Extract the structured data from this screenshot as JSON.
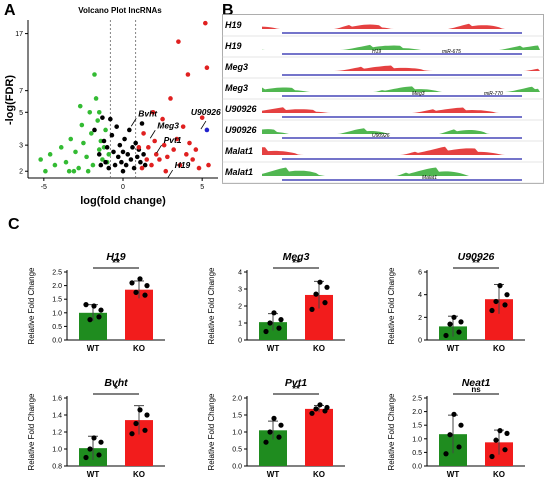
{
  "panels": {
    "a_letter": "A",
    "b_letter": "B",
    "c_letter": "C"
  },
  "chart_data": [
    {
      "type": "scatter",
      "title": "Volcano Plot lncRNAs",
      "xlabel": "log(fold change)",
      "ylabel": "-log(FDR)",
      "xlim": [
        -6,
        6
      ],
      "ylim": [
        1.8,
        21
      ],
      "x_ticks": [
        "-5",
        "0",
        "5"
      ],
      "y_ticks": [
        "2",
        "3",
        "5",
        "7",
        "17"
      ],
      "scale_y": "log",
      "threshold_lines_x": [
        -0.8,
        0.8
      ],
      "colors": {
        "down": "#33bb33",
        "ns": "#000000",
        "up": "#e02020",
        "highlight": "#2222cc"
      },
      "series": [
        {
          "name": "",
          "color": "down",
          "points": [
            [
              -5.2,
              2.4
            ],
            [
              -4.6,
              2.6
            ],
            [
              -4.3,
              2.2
            ],
            [
              -3.9,
              2.9
            ],
            [
              -3.6,
              2.3
            ],
            [
              -3.3,
              3.3
            ],
            [
              -3.0,
              2.7
            ],
            [
              -2.8,
              2.1
            ],
            [
              -2.6,
              4.1
            ],
            [
              -2.5,
              3.1
            ],
            [
              -2.3,
              2.5
            ],
            [
              -2.1,
              5.0
            ],
            [
              -2.0,
              3.6
            ],
            [
              -1.9,
              2.2
            ],
            [
              -1.7,
              6.2
            ],
            [
              -1.6,
              4.4
            ],
            [
              -1.5,
              2.8
            ],
            [
              -1.4,
              3.2
            ],
            [
              -1.3,
              2.4
            ],
            [
              -1.2,
              2.9
            ],
            [
              -1.1,
              3.8
            ],
            [
              -1.0,
              2.3
            ],
            [
              -3.4,
              2.0
            ],
            [
              -2.2,
              2.0
            ],
            [
              -4.9,
              2.0
            ],
            [
              -1.8,
              9.0
            ],
            [
              -2.7,
              5.5
            ],
            [
              -1.5,
              5.0
            ],
            [
              -3.1,
              2.0
            ],
            [
              -0.9,
              2.6
            ]
          ]
        },
        {
          "name": "",
          "color": "ns",
          "points": [
            [
              -1.8,
              3.8
            ],
            [
              -1.5,
              2.6
            ],
            [
              -1.3,
              4.6
            ],
            [
              -1.2,
              3.2
            ],
            [
              -1.1,
              2.3
            ],
            [
              -1.0,
              2.9
            ],
            [
              -0.9,
              2.1
            ],
            [
              -0.7,
              3.5
            ],
            [
              -0.6,
              2.7
            ],
            [
              -0.5,
              2.2
            ],
            [
              -0.4,
              4.0
            ],
            [
              -0.3,
              2.5
            ],
            [
              -0.2,
              3.0
            ],
            [
              -0.1,
              2.3
            ],
            [
              0.0,
              2.7
            ],
            [
              0.1,
              3.3
            ],
            [
              0.2,
              2.2
            ],
            [
              0.3,
              2.6
            ],
            [
              0.4,
              3.8
            ],
            [
              0.5,
              2.4
            ],
            [
              0.6,
              2.9
            ],
            [
              0.7,
              2.1
            ],
            [
              0.8,
              3.1
            ],
            [
              0.9,
              2.5
            ],
            [
              1.0,
              2.8
            ],
            [
              1.1,
              2.3
            ],
            [
              1.2,
              4.2
            ],
            [
              1.3,
              2.6
            ],
            [
              -1.4,
              2.2
            ],
            [
              -0.8,
              4.5
            ],
            [
              0.0,
              2.0
            ],
            [
              1.4,
              2.2
            ]
          ]
        },
        {
          "name": "",
          "color": "up",
          "points": [
            [
              1.0,
              2.9
            ],
            [
              1.3,
              3.6
            ],
            [
              1.5,
              2.4
            ],
            [
              1.6,
              2.9
            ],
            [
              1.8,
              2.2
            ],
            [
              2.0,
              3.2
            ],
            [
              2.1,
              2.6
            ],
            [
              2.3,
              2.4
            ],
            [
              2.5,
              4.5
            ],
            [
              2.6,
              3.0
            ],
            [
              2.8,
              2.5
            ],
            [
              3.0,
              6.2
            ],
            [
              3.2,
              2.8
            ],
            [
              3.4,
              3.3
            ],
            [
              3.6,
              2.2
            ],
            [
              3.8,
              4.0
            ],
            [
              4.0,
              2.6
            ],
            [
              4.2,
              3.1
            ],
            [
              4.4,
              2.4
            ],
            [
              4.6,
              2.8
            ],
            [
              4.8,
              2.1
            ],
            [
              5.0,
              4.6
            ],
            [
              5.2,
              20.0
            ],
            [
              5.3,
              10.0
            ],
            [
              4.1,
              9.0
            ],
            [
              3.5,
              15.0
            ],
            [
              1.9,
              5.0
            ],
            [
              2.7,
              2.0
            ],
            [
              1.2,
              2.1
            ],
            [
              5.4,
              2.2
            ]
          ]
        },
        {
          "name": "",
          "color": "highlight",
          "points": [
            [
              5.3,
              3.8
            ]
          ]
        }
      ],
      "annotations": [
        {
          "label": "Bvht",
          "x": 0.9,
          "y": 4.7
        },
        {
          "label": "Meg3",
          "x": 2.1,
          "y": 3.9
        },
        {
          "label": "Pvt1",
          "x": 2.5,
          "y": 3.1
        },
        {
          "label": "H19",
          "x": 3.2,
          "y": 2.1
        },
        {
          "label": "U90926",
          "x": 5.3,
          "y": 4.5
        }
      ]
    },
    {
      "type": "bar",
      "title": "H19",
      "categories": [
        "WT",
        "KO"
      ],
      "values": [
        1.0,
        1.85
      ],
      "errors": [
        0.3,
        0.32
      ],
      "ylabel": "Relative Fold Change",
      "ylim": [
        0,
        2.5
      ],
      "yticks": [
        "0.0",
        "0.5",
        "1.0",
        "1.5",
        "2.0",
        "2.5"
      ],
      "significance": "**",
      "points": [
        [
          1.3,
          0.85,
          0.75,
          1.1,
          1.25
        ],
        [
          2.1,
          1.65,
          1.75,
          2.0,
          2.25
        ]
      ]
    },
    {
      "type": "bar",
      "title": "Meg3",
      "categories": [
        "WT",
        "KO"
      ],
      "values": [
        1.05,
        2.65
      ],
      "errors": [
        0.5,
        0.8
      ],
      "ylabel": "Relative Fold Change",
      "ylim": [
        0,
        4
      ],
      "yticks": [
        "0",
        "1",
        "2",
        "3",
        "4"
      ],
      "significance": "**",
      "points": [
        [
          0.5,
          0.7,
          1.0,
          1.2,
          1.6
        ],
        [
          1.8,
          2.2,
          2.7,
          3.1,
          3.4
        ]
      ]
    },
    {
      "type": "bar",
      "title": "U90926",
      "categories": [
        "WT",
        "KO"
      ],
      "values": [
        1.2,
        3.6
      ],
      "errors": [
        0.9,
        1.3
      ],
      "ylabel": "Relative Fold Change",
      "ylim": [
        0,
        6
      ],
      "yticks": [
        "0",
        "2",
        "4",
        "6"
      ],
      "significance": "**",
      "points": [
        [
          0.4,
          0.7,
          1.4,
          1.6,
          2.0
        ],
        [
          2.6,
          3.1,
          3.4,
          4.0,
          4.8
        ]
      ]
    },
    {
      "type": "bar",
      "title": "Bvht",
      "categories": [
        "WT",
        "KO"
      ],
      "values": [
        1.01,
        1.34
      ],
      "errors": [
        0.14,
        0.17
      ],
      "ylabel": "Relative Fold Change",
      "ylim": [
        0.8,
        1.6
      ],
      "yticks": [
        "0.8",
        "1.0",
        "1.2",
        "1.4",
        "1.6"
      ],
      "significance": "*",
      "points": [
        [
          0.9,
          0.93,
          1.0,
          1.08,
          1.13
        ],
        [
          1.18,
          1.22,
          1.3,
          1.4,
          1.46
        ]
      ]
    },
    {
      "type": "bar",
      "title": "Pvt1",
      "categories": [
        "WT",
        "KO"
      ],
      "values": [
        1.05,
        1.68
      ],
      "errors": [
        0.27,
        0.1
      ],
      "ylabel": "Relative Fold Change",
      "ylim": [
        0,
        2
      ],
      "yticks": [
        "0.0",
        "0.5",
        "1.0",
        "1.5",
        "2.0"
      ],
      "significance": "**",
      "points": [
        [
          0.7,
          0.85,
          1.0,
          1.2,
          1.4
        ],
        [
          1.55,
          1.62,
          1.68,
          1.72,
          1.8
        ]
      ]
    },
    {
      "type": "bar",
      "title": "Neat1",
      "categories": [
        "WT",
        "KO"
      ],
      "values": [
        1.17,
        0.87
      ],
      "errors": [
        0.7,
        0.45
      ],
      "ylabel": "Relative Fold Change",
      "ylim": [
        0,
        2.5
      ],
      "yticks": [
        "0.0",
        "0.5",
        "1.0",
        "1.5",
        "2.0",
        "2.5"
      ],
      "significance": "ns",
      "points": [
        [
          0.45,
          0.7,
          1.15,
          1.5,
          1.9
        ],
        [
          0.35,
          0.6,
          0.95,
          1.2,
          1.3
        ]
      ]
    }
  ],
  "tracks": {
    "labels": [
      "H19",
      "H19",
      "Meg3",
      "Meg3",
      "U90926",
      "U90926",
      "Malat1",
      "Malat1"
    ],
    "gene_annotations": [
      "H19",
      "miR-675",
      "Meg3",
      "miR-770",
      "U90926",
      "Malat1"
    ],
    "colors": {
      "wt": "#e02020",
      "ko": "#33aa33",
      "gene": "#2222aa"
    }
  },
  "bar_colors": {
    "WT": "#1f8c1f",
    "KO": "#f21c1c"
  }
}
